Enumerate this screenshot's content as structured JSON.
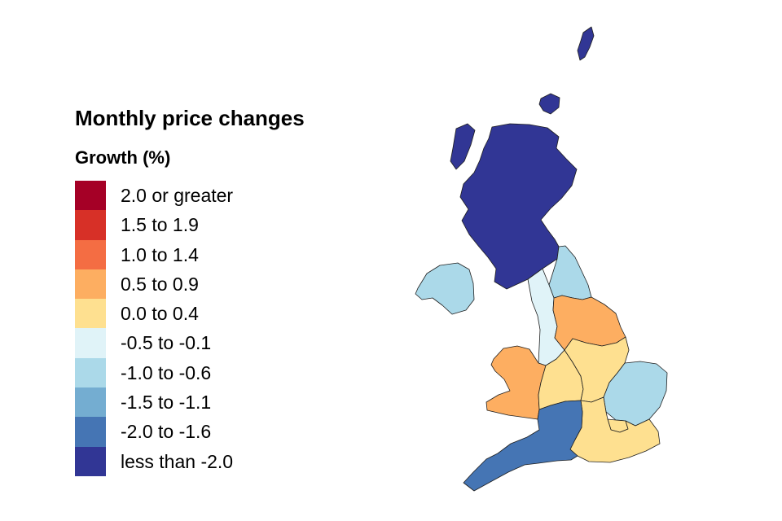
{
  "title": "Monthly price changes",
  "legend": {
    "title": "Growth (%)",
    "items": [
      {
        "label": "2.0 or greater",
        "color": "#a50026"
      },
      {
        "label": "1.5 to 1.9",
        "color": "#d73027"
      },
      {
        "label": "1.0 to 1.4",
        "color": "#f46d43"
      },
      {
        "label": "0.5 to 0.9",
        "color": "#fdae61"
      },
      {
        "label": "0.0 to 0.4",
        "color": "#fee090"
      },
      {
        "label": "-0.5 to -0.1",
        "color": "#e0f3f8"
      },
      {
        "label": "-1.0 to -0.6",
        "color": "#abd9e9"
      },
      {
        "label": "-1.5 to -1.1",
        "color": "#74add1"
      },
      {
        "label": "-2.0 to -1.6",
        "color": "#4575b4"
      },
      {
        "label": "less than -2.0",
        "color": "#313695"
      }
    ]
  },
  "regions": [
    {
      "name": "Scotland",
      "band": "less than -2.0"
    },
    {
      "name": "Northern Ireland",
      "band": "-1.0 to -0.6"
    },
    {
      "name": "North East",
      "band": "-1.0 to -0.6"
    },
    {
      "name": "North West",
      "band": "-0.5 to -0.1"
    },
    {
      "name": "Yorkshire and The Humber",
      "band": "0.5 to 0.9"
    },
    {
      "name": "Wales",
      "band": "0.5 to 0.9"
    },
    {
      "name": "East Midlands",
      "band": "0.0 to 0.4"
    },
    {
      "name": "West Midlands",
      "band": "0.0 to 0.4"
    },
    {
      "name": "East of England",
      "band": "-1.0 to -0.6"
    },
    {
      "name": "London",
      "band": "0.0 to 0.4"
    },
    {
      "name": "South East",
      "band": "0.0 to 0.4"
    },
    {
      "name": "South West",
      "band": "-2.0 to -1.6"
    }
  ]
}
